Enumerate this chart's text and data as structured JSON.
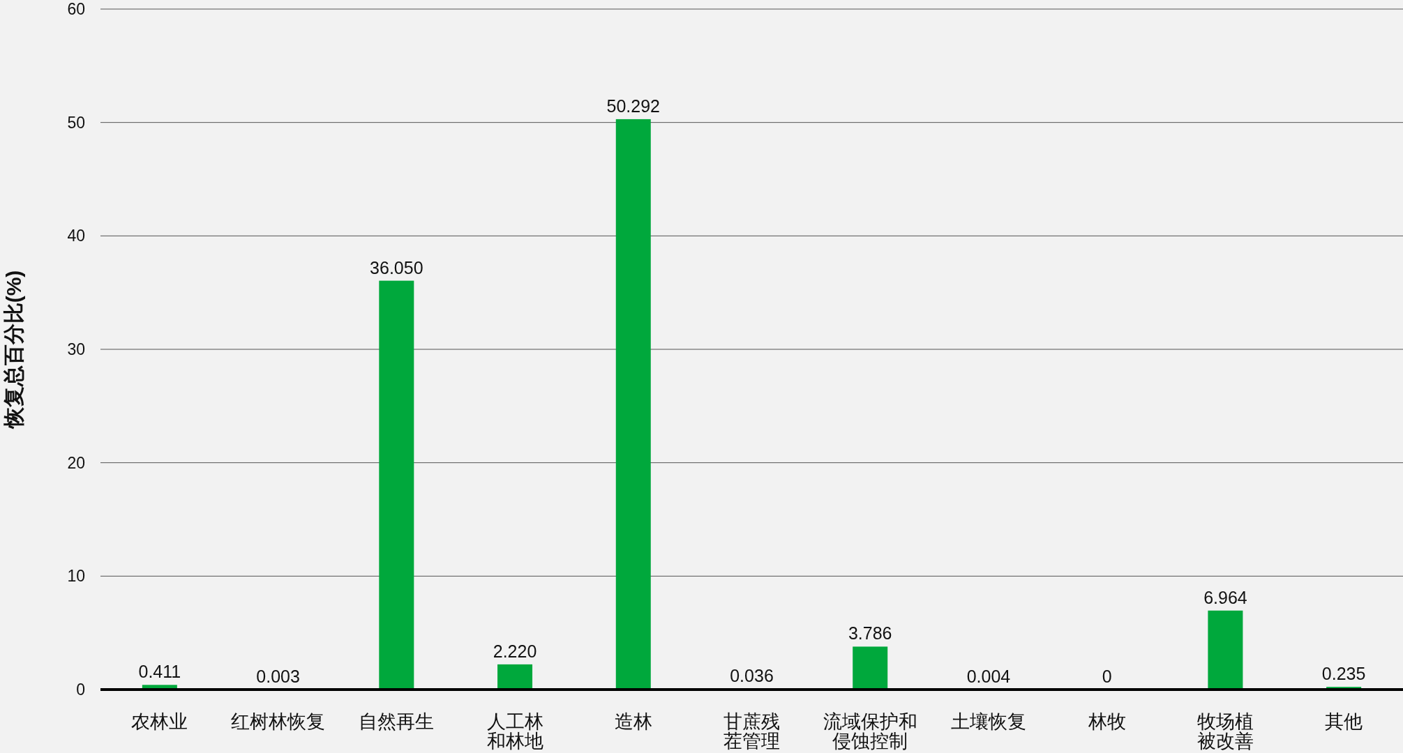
{
  "chart_data": {
    "type": "bar",
    "ylabel": "恢复总百分比(%)",
    "categories": [
      "农林业",
      "红树林恢复",
      "自然再生",
      "人工林和林地",
      "造林",
      "甘蔗残茬管理",
      "流域保护和侵蚀控制",
      "土壤恢复",
      "林牧",
      "牧场植被改善",
      "其他"
    ],
    "values": [
      0.411,
      0.003,
      36.05,
      2.22,
      50.292,
      0.036,
      3.786,
      0.004,
      0,
      6.964,
      0.235
    ],
    "value_labels": [
      "0.411",
      "0.003",
      "36.050",
      "2.220",
      "50.292",
      "0.036",
      "3.786",
      "0.004",
      "0",
      "6.964",
      "0.235"
    ],
    "color": "#00a83c",
    "ylim": [
      0,
      60
    ],
    "yticks": [
      0,
      10,
      20,
      30,
      40,
      50,
      60
    ],
    "grid": "y"
  }
}
